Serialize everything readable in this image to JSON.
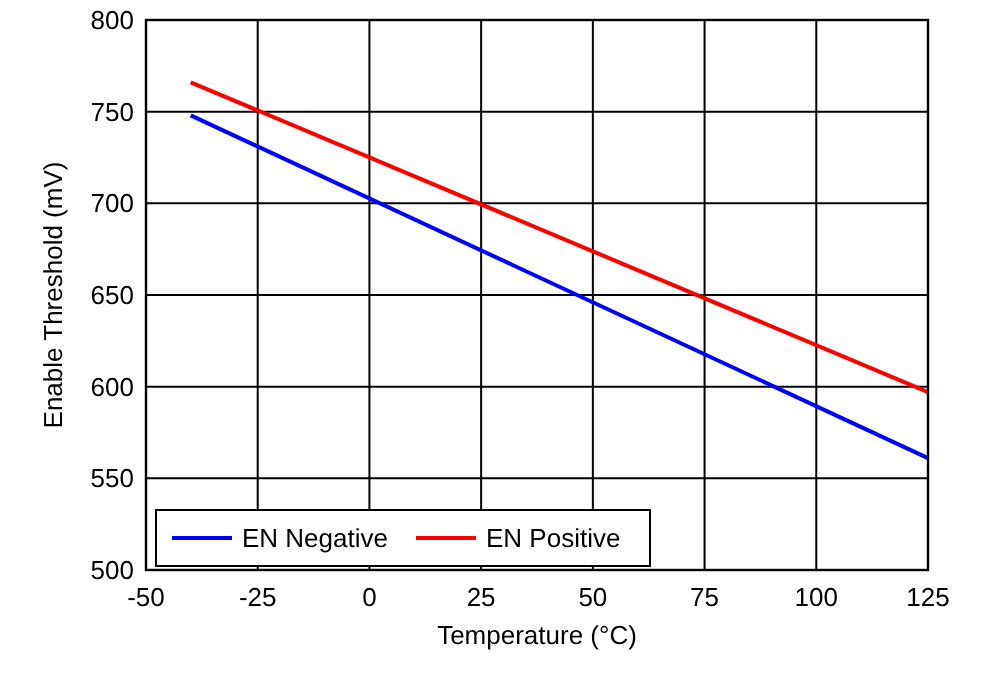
{
  "chart_data": {
    "type": "line",
    "xlabel": "Temperature (°C)",
    "ylabel": "Enable Threshold (mV)",
    "x": [
      -40,
      125
    ],
    "series": [
      {
        "name": "EN Negative",
        "color": "#0000ff",
        "values": [
          748,
          561
        ]
      },
      {
        "name": "EN Positive",
        "color": "#ff0000",
        "values": [
          766,
          597
        ]
      }
    ],
    "xlim": [
      -50,
      125
    ],
    "xticks": [
      -50,
      -25,
      0,
      25,
      50,
      75,
      100,
      125
    ],
    "ylim": [
      500,
      800
    ],
    "yticks": [
      500,
      550,
      600,
      650,
      700,
      750,
      800
    ],
    "grid": true,
    "legend": "bottom left",
    "marker": "none",
    "line_style": "solid"
  }
}
